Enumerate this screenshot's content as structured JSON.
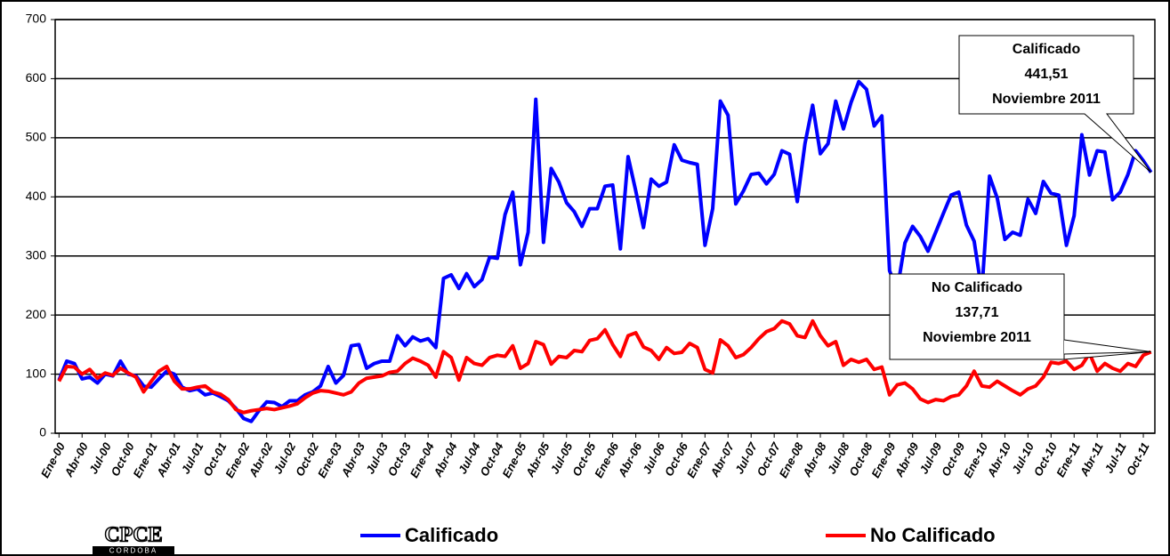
{
  "chart_data": {
    "type": "line",
    "categories": [
      "Ene-00",
      null,
      null,
      "Abr-00",
      null,
      null,
      "Jul-00",
      null,
      null,
      "Oct-00",
      null,
      null,
      "Ene-01",
      null,
      null,
      "Abr-01",
      null,
      null,
      "Jul-01",
      null,
      null,
      "Oct-01",
      null,
      null,
      "Ene-02",
      null,
      null,
      "Abr-02",
      null,
      null,
      "Jul-02",
      null,
      null,
      "Oct-02",
      null,
      null,
      "Ene-03",
      null,
      null,
      "Abr-03",
      null,
      null,
      "Jul-03",
      null,
      null,
      "Oct-03",
      null,
      null,
      "Ene-04",
      null,
      null,
      "Abr-04",
      null,
      null,
      "Jul-04",
      null,
      null,
      "Oct-04",
      null,
      null,
      "Ene-05",
      null,
      null,
      "Abr-05",
      null,
      null,
      "Jul-05",
      null,
      null,
      "Oct-05",
      null,
      null,
      "Ene-06",
      null,
      null,
      "Abr-06",
      null,
      null,
      "Jul-06",
      null,
      null,
      "Oct-06",
      null,
      null,
      "Ene-07",
      null,
      null,
      "Abr-07",
      null,
      null,
      "Jul-07",
      null,
      null,
      "Oct-07",
      null,
      null,
      "Ene-08",
      null,
      null,
      "Abr-08",
      null,
      null,
      "Jul-08",
      null,
      null,
      "Oct-08",
      null,
      null,
      "Ene-09",
      null,
      null,
      "Abr-09",
      null,
      null,
      "Jul-09",
      null,
      null,
      "Oct-09",
      null,
      null,
      "Ene-10",
      null,
      null,
      "Abr-10",
      null,
      null,
      "Jul-10",
      null,
      null,
      "Oct-10",
      null,
      null,
      "Ene-11",
      null,
      null,
      "Abr-11",
      null,
      null,
      "Jul-11",
      null,
      null,
      "Oct-11",
      null
    ],
    "series": [
      {
        "name": "Calificado",
        "color": "#0000ff",
        "values": [
          90,
          122,
          118,
          92,
          95,
          85,
          100,
          97,
          122,
          100,
          97,
          80,
          78,
          92,
          105,
          100,
          78,
          72,
          75,
          65,
          68,
          62,
          55,
          42,
          25,
          20,
          38,
          53,
          52,
          45,
          55,
          55,
          65,
          70,
          80,
          113,
          85,
          98,
          148,
          150,
          110,
          118,
          122,
          122,
          165,
          148,
          163,
          156,
          160,
          145,
          262,
          268,
          245,
          270,
          248,
          260,
          298,
          296,
          370,
          408,
          285,
          340,
          565,
          323,
          448,
          425,
          390,
          375,
          350,
          380,
          380,
          418,
          420,
          312,
          468,
          410,
          348,
          430,
          418,
          425,
          488,
          462,
          458,
          455,
          318,
          380,
          562,
          538,
          388,
          410,
          438,
          440,
          422,
          438,
          478,
          472,
          392,
          490,
          555,
          473,
          490,
          562,
          515,
          560,
          595,
          582,
          520,
          537,
          275,
          243,
          322,
          350,
          333,
          308,
          340,
          372,
          403,
          408,
          352,
          325,
          240,
          435,
          398,
          328,
          340,
          335,
          396,
          372,
          426,
          406,
          403,
          318,
          368,
          505,
          437,
          478,
          476,
          395,
          408,
          438,
          478,
          461,
          441.51
        ]
      },
      {
        "name": "No Calificado",
        "color": "#ff0000",
        "values": [
          88,
          113,
          112,
          100,
          108,
          93,
          102,
          98,
          110,
          102,
          95,
          70,
          88,
          105,
          113,
          88,
          75,
          75,
          78,
          80,
          70,
          66,
          57,
          40,
          35,
          38,
          40,
          42,
          40,
          43,
          46,
          50,
          60,
          68,
          72,
          71,
          68,
          65,
          70,
          85,
          93,
          95,
          97,
          103,
          105,
          118,
          127,
          122,
          115,
          95,
          138,
          128,
          90,
          128,
          118,
          115,
          128,
          132,
          130,
          148,
          110,
          118,
          155,
          150,
          117,
          130,
          128,
          140,
          138,
          157,
          160,
          175,
          150,
          130,
          165,
          170,
          146,
          140,
          125,
          145,
          135,
          137,
          152,
          145,
          108,
          102,
          158,
          148,
          128,
          133,
          145,
          160,
          172,
          177,
          190,
          185,
          165,
          162,
          190,
          165,
          148,
          155,
          115,
          125,
          120,
          125,
          108,
          112,
          65,
          82,
          85,
          75,
          58,
          52,
          57,
          55,
          62,
          65,
          80,
          105,
          80,
          78,
          88,
          80,
          72,
          65,
          75,
          80,
          95,
          120,
          118,
          122,
          108,
          115,
          135,
          105,
          118,
          110,
          105,
          118,
          113,
          132,
          137.71
        ]
      }
    ],
    "ylim": [
      0,
      700
    ],
    "yticks": [
      0,
      100,
      200,
      300,
      400,
      500,
      600,
      700
    ],
    "grid": true,
    "annotations": [
      {
        "lines": [
          "Calificado",
          "441,51",
          "Noviembre 2011"
        ]
      },
      {
        "lines": [
          "No Calificado",
          "137,71",
          "Noviembre 2011"
        ]
      }
    ],
    "logo": {
      "text": "CPCE",
      "subtext": "CORDOBA"
    }
  }
}
